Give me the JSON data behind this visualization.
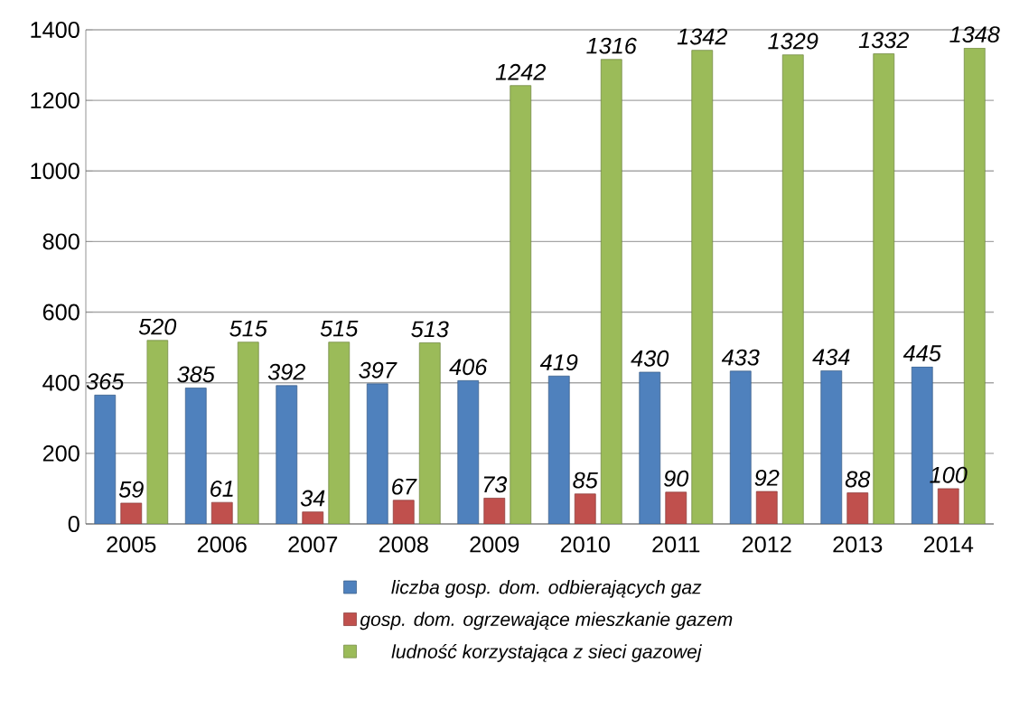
{
  "chart_data": {
    "type": "bar",
    "categories": [
      "2005",
      "2006",
      "2007",
      "2008",
      "2009",
      "2010",
      "2011",
      "2012",
      "2013",
      "2014"
    ],
    "series": [
      {
        "name": "liczba gosp. dom. odbierających gaz",
        "color": "#4f81bd",
        "values": [
          365,
          385,
          392,
          397,
          406,
          419,
          430,
          433,
          434,
          445
        ]
      },
      {
        "name": "gosp. dom. ogrzewające mieszkanie gazem",
        "color": "#c0504d",
        "values": [
          59,
          61,
          34,
          67,
          73,
          85,
          90,
          92,
          88,
          100
        ]
      },
      {
        "name": "ludność korzystająca z sieci gazowej",
        "color": "#9bbb59",
        "values": [
          520,
          515,
          515,
          513,
          1242,
          1316,
          1342,
          1329,
          1332,
          1348
        ]
      }
    ],
    "ylim": [
      0,
      1400
    ],
    "yticks": [
      0,
      200,
      400,
      600,
      800,
      1000,
      1200,
      1400
    ],
    "grid": "y",
    "legend": "bottom",
    "data_labels": true
  }
}
